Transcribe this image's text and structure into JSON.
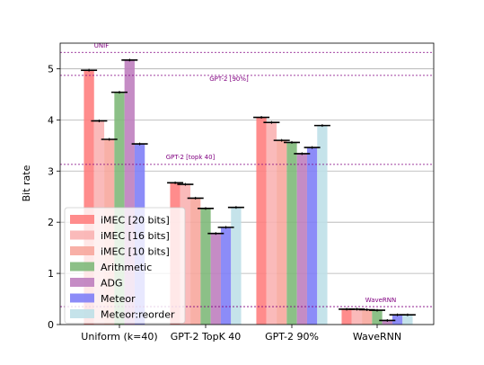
{
  "chart_data": {
    "type": "bar",
    "title": "",
    "xlabel": "",
    "ylabel": "Bit rate",
    "ylim": [
      0,
      5.5
    ],
    "yticks": [
      "0",
      "1",
      "2",
      "3",
      "4",
      "5"
    ],
    "grid": "horizontal",
    "legend_position": "lower-left",
    "categories": [
      "Uniform (k=40)",
      "GPT-2 TopK 40",
      "GPT-2 90%",
      "WaveRNN"
    ],
    "series": [
      {
        "name": "iMEC [20 bits]",
        "color": "#ff7f7f",
        "alpha": 0.9,
        "values": [
          4.97,
          2.77,
          4.05,
          0.3
        ]
      },
      {
        "name": "iMEC [16 bits]",
        "color": "#f9b3b3",
        "alpha": 0.9,
        "values": [
          3.98,
          2.74,
          3.95,
          0.3
        ]
      },
      {
        "name": "iMEC [10 bits]",
        "color": "#f7a79d",
        "alpha": 0.9,
        "values": [
          3.62,
          2.47,
          3.6,
          0.29
        ]
      },
      {
        "name": "Arithmetic",
        "color": "#80b97a",
        "alpha": 0.9,
        "values": [
          4.54,
          2.27,
          3.56,
          0.28
        ]
      },
      {
        "name": "ADG",
        "color": "#bf7fbf",
        "alpha": 0.9,
        "values": [
          5.17,
          1.78,
          3.34,
          0.08
        ]
      },
      {
        "name": "Meteor",
        "color": "#7f7ff7",
        "alpha": 0.9,
        "values": [
          3.53,
          1.9,
          3.46,
          0.19
        ]
      },
      {
        "name": "Meteor:reorder",
        "color": "#bfe0e8",
        "alpha": 0.9,
        "values": [
          null,
          2.29,
          3.89,
          0.19
        ]
      }
    ],
    "reference_lines": [
      {
        "label": "UNIF",
        "value": 5.32
      },
      {
        "label": "GPT-2 [90%]",
        "value": 4.87
      },
      {
        "label": "GPT-2 [topk 40]",
        "value": 3.13
      },
      {
        "label": "WaveRNN",
        "value": 0.35
      }
    ],
    "reference_line_color": "#800080"
  }
}
